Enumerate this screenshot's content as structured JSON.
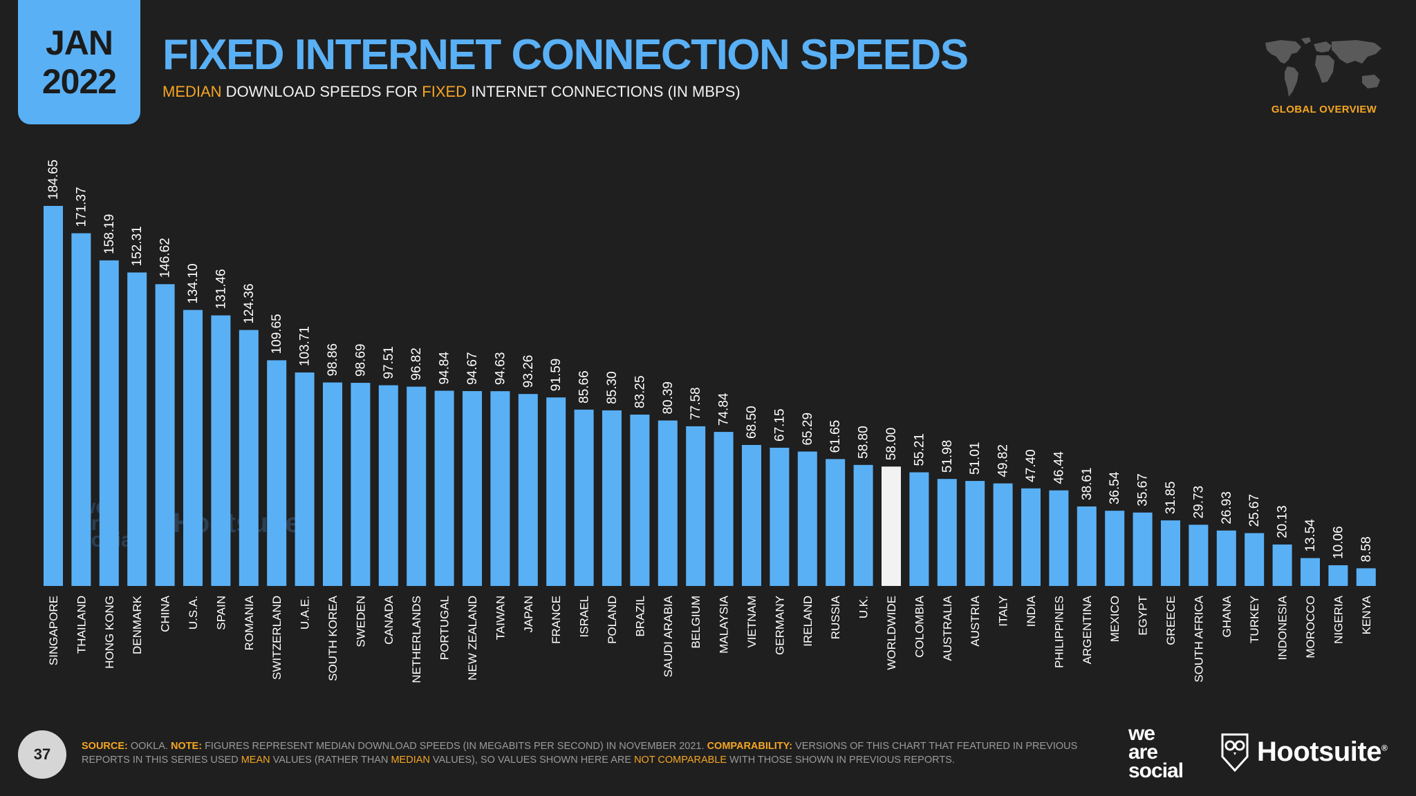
{
  "header": {
    "month": "JAN",
    "year": "2022",
    "title": "FIXED INTERNET CONNECTION SPEEDS",
    "subtitle": {
      "part1": "MEDIAN",
      "part2": " DOWNLOAD SPEEDS FOR ",
      "part3": "FIXED",
      "part4": " INTERNET CONNECTIONS (IN MBPS)"
    },
    "section_label": "GLOBAL OVERVIEW"
  },
  "footer": {
    "page_number": "37",
    "source_label": "SOURCE:",
    "source_text": " OOKLA. ",
    "note_label": "NOTE:",
    "note_text": " FIGURES REPRESENT MEDIAN DOWNLOAD SPEEDS (IN MEGABITS PER SECOND) IN NOVEMBER 2021. ",
    "comparability_label": "COMPARABILITY:",
    "comparability_text1": " VERSIONS OF THIS CHART THAT FEATURED IN PREVIOUS REPORTS IN THIS SERIES USED ",
    "mean": "MEAN",
    "comparability_text2": " VALUES (RATHER THAN ",
    "median": "MEDIAN",
    "comparability_text3": " VALUES), SO VALUES SHOWN HERE ARE ",
    "not_comparable": "NOT COMPARABLE",
    "comparability_text4": " WITH THOSE SHOWN IN PREVIOUS REPORTS."
  },
  "branding": {
    "was_line1": "we",
    "was_line2": "are",
    "was_line3": "social",
    "hootsuite": "Hootsuite",
    "trademark": "®"
  },
  "colors": {
    "bar": "#5ab0f5",
    "highlight_bar": "#f2f2f2",
    "accent": "#f5a623",
    "background": "#1f1f1f"
  },
  "chart_data": {
    "type": "bar",
    "categories": [
      "SINGAPORE",
      "THAILAND",
      "HONG KONG",
      "DENMARK",
      "CHINA",
      "U.S.A.",
      "SPAIN",
      "ROMANIA",
      "SWITZERLAND",
      "U.A.E.",
      "SOUTH KOREA",
      "SWEDEN",
      "CANADA",
      "NETHERLANDS",
      "PORTUGAL",
      "NEW ZEALAND",
      "TAIWAN",
      "JAPAN",
      "FRANCE",
      "ISRAEL",
      "POLAND",
      "BRAZIL",
      "SAUDI ARABIA",
      "BELGIUM",
      "MALAYSIA",
      "VIETNAM",
      "GERMANY",
      "IRELAND",
      "RUSSIA",
      "U.K.",
      "WORLDWIDE",
      "COLOMBIA",
      "AUSTRALIA",
      "AUSTRIA",
      "ITALY",
      "INDIA",
      "PHILIPPINES",
      "ARGENTINA",
      "MEXICO",
      "EGYPT",
      "GREECE",
      "SOUTH AFRICA",
      "GHANA",
      "TURKEY",
      "INDONESIA",
      "MOROCCO",
      "NIGERIA",
      "KENYA"
    ],
    "values": [
      184.65,
      171.37,
      158.19,
      152.31,
      146.62,
      134.1,
      131.46,
      124.36,
      109.65,
      103.71,
      98.86,
      98.69,
      97.51,
      96.82,
      94.84,
      94.67,
      94.63,
      93.26,
      91.59,
      85.66,
      85.3,
      83.25,
      80.39,
      77.58,
      74.84,
      68.5,
      67.15,
      65.29,
      61.65,
      58.8,
      58.0,
      55.21,
      51.98,
      51.01,
      49.82,
      47.4,
      46.44,
      38.61,
      36.54,
      35.67,
      31.85,
      29.73,
      26.93,
      25.67,
      20.13,
      13.54,
      10.06,
      8.58
    ],
    "value_labels": [
      "184.65",
      "171.37",
      "158.19",
      "152.31",
      "146.62",
      "134.10",
      "131.46",
      "124.36",
      "109.65",
      "103.71",
      "98.86",
      "98.69",
      "97.51",
      "96.82",
      "94.84",
      "94.67",
      "94.63",
      "93.26",
      "91.59",
      "85.66",
      "85.30",
      "83.25",
      "80.39",
      "77.58",
      "74.84",
      "68.50",
      "67.15",
      "65.29",
      "61.65",
      "58.80",
      "58.00",
      "55.21",
      "51.98",
      "51.01",
      "49.82",
      "47.40",
      "46.44",
      "38.61",
      "36.54",
      "35.67",
      "31.85",
      "29.73",
      "26.93",
      "25.67",
      "20.13",
      "13.54",
      "10.06",
      "8.58"
    ],
    "highlight_category": "WORLDWIDE",
    "ylim": [
      0,
      184.65
    ],
    "grid": false,
    "legend": "none"
  }
}
